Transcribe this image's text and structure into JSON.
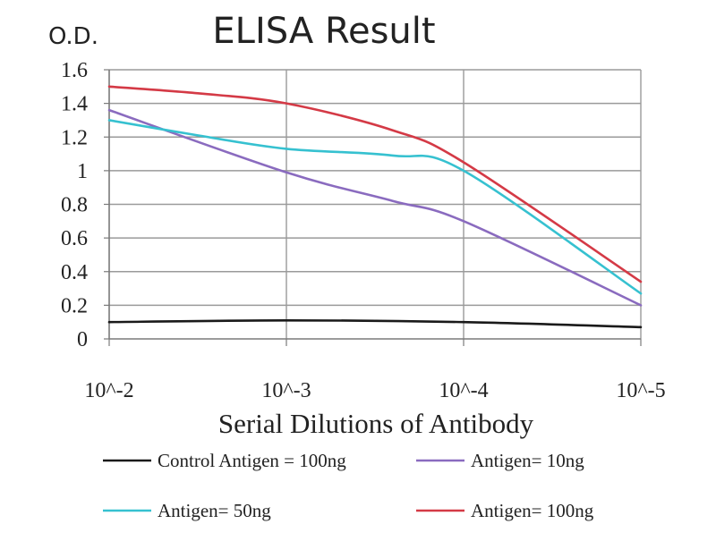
{
  "chart_data": {
    "type": "line",
    "title": "ELISA Result",
    "ylabel": "O.D.",
    "xlabel": "Serial Dilutions of Antibody",
    "categories": [
      "10^-2",
      "10^-3",
      "10^-4",
      "10^-5"
    ],
    "ylim": [
      0,
      1.6
    ],
    "yticks": [
      "0",
      "0.2",
      "0.4",
      "0.6",
      "0.8",
      "1",
      "1.2",
      "1.4",
      "1.6"
    ],
    "grid": true,
    "legend_position": "bottom",
    "series": [
      {
        "name": "Control Antigen = 100ng",
        "color": "#1a1a1a",
        "x": [
          0,
          1,
          2,
          3
        ],
        "values": [
          0.1,
          0.11,
          0.1,
          0.07
        ]
      },
      {
        "name": "Antigen= 10ng",
        "color": "#8a6bbf",
        "x": [
          0,
          1,
          1.6,
          2,
          3
        ],
        "values": [
          1.36,
          0.99,
          0.82,
          0.7,
          0.2
        ]
      },
      {
        "name": "Antigen= 50ng",
        "color": "#36c1d0",
        "x": [
          0,
          0.5,
          1,
          1.6,
          2,
          3
        ],
        "values": [
          1.3,
          1.21,
          1.13,
          1.09,
          1.0,
          0.27
        ]
      },
      {
        "name": "Antigen= 100ng",
        "color": "#d43a46",
        "x": [
          0,
          0.5,
          1,
          1.6,
          2,
          3
        ],
        "values": [
          1.5,
          1.46,
          1.4,
          1.24,
          1.05,
          0.34
        ]
      }
    ]
  }
}
